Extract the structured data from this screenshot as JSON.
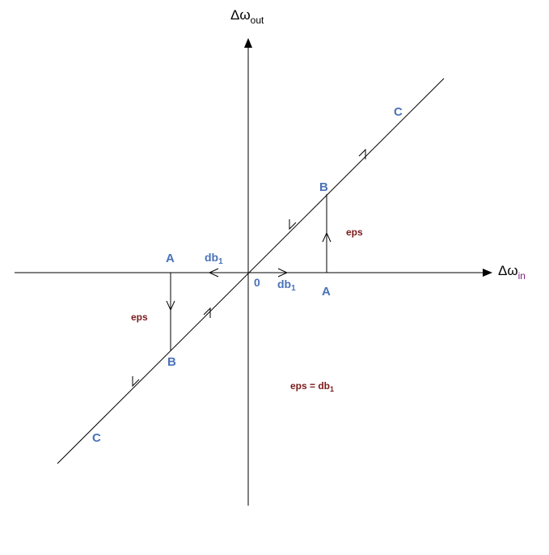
{
  "axes": {
    "x_label_main": "Δω",
    "x_label_sub": "in",
    "y_label_main": "Δω",
    "y_label_sub": "out",
    "origin": "0"
  },
  "points": {
    "A_upper": "A",
    "B_upper": "B",
    "C_upper": "C",
    "A_lower": "A",
    "B_lower": "B",
    "C_lower": "C"
  },
  "db_left": {
    "main": "db",
    "sub": "1"
  },
  "db_right": {
    "main": "db",
    "sub": "1"
  },
  "eps_right": "eps",
  "eps_left": "eps",
  "equation": {
    "main": "eps = db",
    "sub": "1"
  },
  "colors": {
    "point_labels": "#4a72b8",
    "eps_labels": "#7a1a1a",
    "x_sub": "#7a1a7a"
  }
}
